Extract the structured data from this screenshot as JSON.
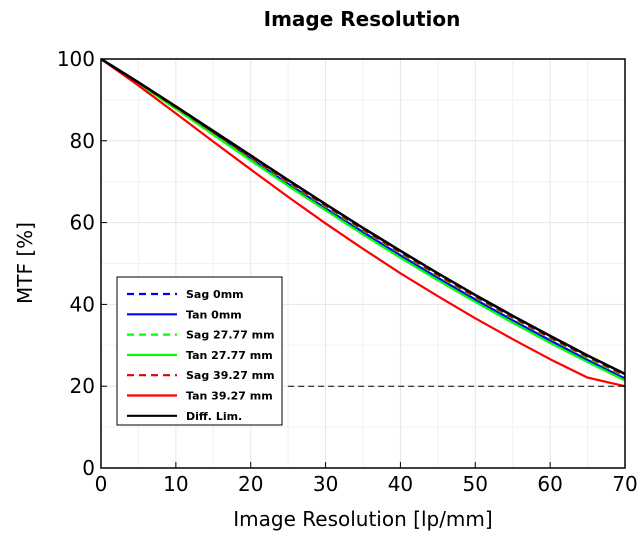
{
  "chart_data": {
    "type": "line",
    "title": "Image Resolution",
    "xlabel": "Image Resolution [lp/mm]",
    "ylabel": "MTF [%]",
    "xlim": [
      0,
      70
    ],
    "ylim": [
      0,
      100
    ],
    "xticks": [
      0,
      10,
      20,
      30,
      40,
      50,
      60,
      70
    ],
    "yticks": [
      0,
      20,
      40,
      60,
      80,
      100
    ],
    "grid": true,
    "legend_position": "bottom-left",
    "reference_line": {
      "y": 20,
      "x_start": 25,
      "x_end": 70,
      "style": "dashed",
      "color": "#000000"
    },
    "x": [
      0,
      5,
      10,
      15,
      20,
      25,
      30,
      35,
      40,
      45,
      50,
      55,
      60,
      65,
      70
    ],
    "series": [
      {
        "name": "Sag 0mm",
        "color": "#0000ff",
        "dash": true,
        "values": [
          100,
          94.2,
          88.2,
          82.1,
          76.0,
          69.9,
          64.0,
          58.3,
          52.6,
          47.2,
          41.9,
          36.8,
          31.9,
          27.1,
          22.5
        ]
      },
      {
        "name": "Tan 0mm",
        "color": "#0000ff",
        "dash": false,
        "values": [
          100,
          94.1,
          88.0,
          81.8,
          75.6,
          69.5,
          63.5,
          57.7,
          52.0,
          46.5,
          41.2,
          36.1,
          31.2,
          26.4,
          21.9
        ]
      },
      {
        "name": "Sag 27.77 mm",
        "color": "#00ff00",
        "dash": true,
        "values": [
          100,
          94.2,
          88.1,
          82.0,
          75.9,
          69.8,
          63.9,
          58.1,
          52.5,
          47.0,
          41.7,
          36.6,
          31.7,
          26.9,
          22.4
        ]
      },
      {
        "name": "Tan 27.77 mm",
        "color": "#00ff00",
        "dash": false,
        "values": [
          100,
          94.0,
          87.8,
          81.5,
          75.2,
          69.0,
          63.0,
          57.1,
          51.4,
          45.9,
          40.6,
          35.5,
          30.6,
          25.9,
          21.4
        ]
      },
      {
        "name": "Sag 39.27 mm",
        "color": "#dd0000",
        "dash": true,
        "values": [
          100,
          94.2,
          88.2,
          82.1,
          76.0,
          70.0,
          64.1,
          58.3,
          52.7,
          47.2,
          41.9,
          36.8,
          31.9,
          27.2,
          22.6
        ]
      },
      {
        "name": "Tan 39.27 mm",
        "color": "#ff0000",
        "dash": false,
        "values": [
          100,
          93.5,
          86.7,
          79.8,
          73.0,
          66.3,
          59.8,
          53.6,
          47.6,
          42.0,
          36.6,
          31.5,
          26.6,
          22.1,
          20.0
        ]
      },
      {
        "name": "Diff. Lim.",
        "color": "#000000",
        "dash": false,
        "values": [
          100,
          94.3,
          88.4,
          82.4,
          76.4,
          70.4,
          64.5,
          58.7,
          53.1,
          47.6,
          42.3,
          37.2,
          32.3,
          27.5,
          23.0
        ]
      }
    ]
  }
}
